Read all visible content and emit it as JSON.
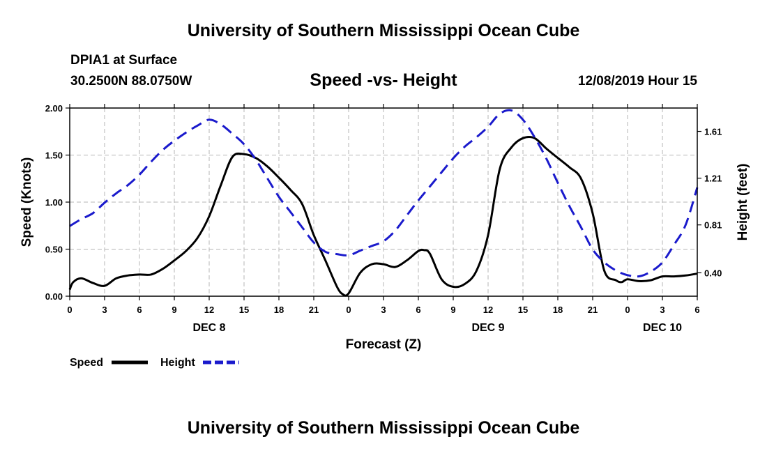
{
  "header": {
    "title_top": "University of Southern Mississippi Ocean Cube",
    "station": "DPIA1 at Surface",
    "coords": "30.2500N 88.0750W",
    "plot_title": "Speed -vs- Height",
    "datetime": "12/08/2019 Hour 15"
  },
  "footer": {
    "title_bottom": "University of Southern Mississippi Ocean Cube"
  },
  "colors": {
    "speed": "#000000",
    "height": "#1a1acc",
    "grid": "#b4b4b4"
  },
  "chart_data": {
    "type": "line",
    "title": "Speed -vs- Height",
    "xlabel": "Forecast (Z)",
    "ylabel_left": "Speed (Knots)",
    "ylabel_right": "Height (feet)",
    "x_range_hours": [
      0,
      54
    ],
    "ylim_left": [
      0,
      2.0
    ],
    "ylim_right": [
      0.2,
      1.81
    ],
    "x_ticks": [
      {
        "h": 0,
        "label": "0"
      },
      {
        "h": 3,
        "label": "3"
      },
      {
        "h": 6,
        "label": "6"
      },
      {
        "h": 9,
        "label": "9"
      },
      {
        "h": 12,
        "label": "12"
      },
      {
        "h": 15,
        "label": "15"
      },
      {
        "h": 18,
        "label": "18"
      },
      {
        "h": 21,
        "label": "21"
      },
      {
        "h": 24,
        "label": "0"
      },
      {
        "h": 27,
        "label": "3"
      },
      {
        "h": 30,
        "label": "6"
      },
      {
        "h": 33,
        "label": "9"
      },
      {
        "h": 36,
        "label": "12"
      },
      {
        "h": 39,
        "label": "15"
      },
      {
        "h": 42,
        "label": "18"
      },
      {
        "h": 45,
        "label": "21"
      },
      {
        "h": 48,
        "label": "0"
      },
      {
        "h": 51,
        "label": "3"
      },
      {
        "h": 54,
        "label": "6"
      }
    ],
    "day_labels": [
      {
        "h": 12,
        "label": "DEC 8"
      },
      {
        "h": 36,
        "label": "DEC 9"
      },
      {
        "h": 51,
        "label": "DEC 10"
      }
    ],
    "y_ticks_left": [
      {
        "v": 0.0,
        "label": "0.00"
      },
      {
        "v": 0.5,
        "label": "0.50"
      },
      {
        "v": 1.0,
        "label": "1.00"
      },
      {
        "v": 1.5,
        "label": "1.50"
      },
      {
        "v": 2.0,
        "label": "2.00"
      }
    ],
    "y_ticks_right": [
      {
        "v": 0.4,
        "label": "0.40"
      },
      {
        "v": 0.81,
        "label": "0.81"
      },
      {
        "v": 1.21,
        "label": "1.21"
      },
      {
        "v": 1.61,
        "label": "1.61"
      }
    ],
    "legend": [
      {
        "name": "Speed",
        "style": "solid"
      },
      {
        "name": "Height",
        "style": "dashed"
      }
    ],
    "series": [
      {
        "name": "Speed",
        "axis": "left",
        "x": [
          0,
          0.3,
          1,
          2,
          3,
          4,
          5,
          6,
          7,
          8,
          9,
          10,
          11,
          12,
          13,
          14,
          15,
          16,
          17,
          18,
          19,
          20,
          21,
          22,
          23,
          23.5,
          24,
          25,
          26,
          27,
          28,
          29,
          30,
          30.5,
          31,
          32,
          33,
          34,
          35,
          36,
          37,
          38,
          39,
          40,
          41,
          42,
          43,
          44,
          45,
          46,
          47,
          47.5,
          48,
          49,
          50,
          51,
          52,
          53,
          54
        ],
        "values": [
          0.07,
          0.15,
          0.19,
          0.14,
          0.11,
          0.19,
          0.22,
          0.23,
          0.23,
          0.29,
          0.38,
          0.48,
          0.62,
          0.85,
          1.18,
          1.48,
          1.51,
          1.47,
          1.38,
          1.26,
          1.13,
          0.98,
          0.65,
          0.38,
          0.1,
          0.02,
          0.03,
          0.25,
          0.34,
          0.34,
          0.31,
          0.38,
          0.48,
          0.49,
          0.45,
          0.18,
          0.1,
          0.13,
          0.27,
          0.65,
          1.35,
          1.58,
          1.68,
          1.68,
          1.57,
          1.47,
          1.37,
          1.25,
          0.88,
          0.27,
          0.17,
          0.15,
          0.18,
          0.16,
          0.17,
          0.21,
          0.21,
          0.22,
          0.24
        ]
      },
      {
        "name": "Height",
        "axis": "right",
        "x": [
          0,
          1,
          2,
          3,
          4,
          5,
          6,
          7,
          8,
          9,
          10,
          11,
          12,
          13,
          14,
          15,
          16,
          17,
          18,
          19,
          20,
          21,
          22,
          23,
          24,
          25,
          26,
          27,
          28,
          29,
          30,
          31,
          32,
          33,
          34,
          35,
          36,
          37,
          38,
          39,
          40,
          41,
          42,
          43,
          44,
          45,
          46,
          47,
          48,
          49,
          50,
          51,
          52,
          53,
          54
        ],
        "values": [
          0.8,
          0.86,
          0.91,
          1.0,
          1.08,
          1.15,
          1.24,
          1.35,
          1.45,
          1.53,
          1.6,
          1.66,
          1.71,
          1.67,
          1.59,
          1.5,
          1.37,
          1.21,
          1.05,
          0.92,
          0.79,
          0.66,
          0.58,
          0.56,
          0.55,
          0.59,
          0.63,
          0.67,
          0.76,
          0.89,
          1.02,
          1.14,
          1.26,
          1.38,
          1.48,
          1.56,
          1.65,
          1.76,
          1.79,
          1.71,
          1.56,
          1.38,
          1.17,
          0.97,
          0.79,
          0.6,
          0.49,
          0.42,
          0.38,
          0.37,
          0.41,
          0.49,
          0.64,
          0.81,
          1.13
        ]
      }
    ]
  }
}
